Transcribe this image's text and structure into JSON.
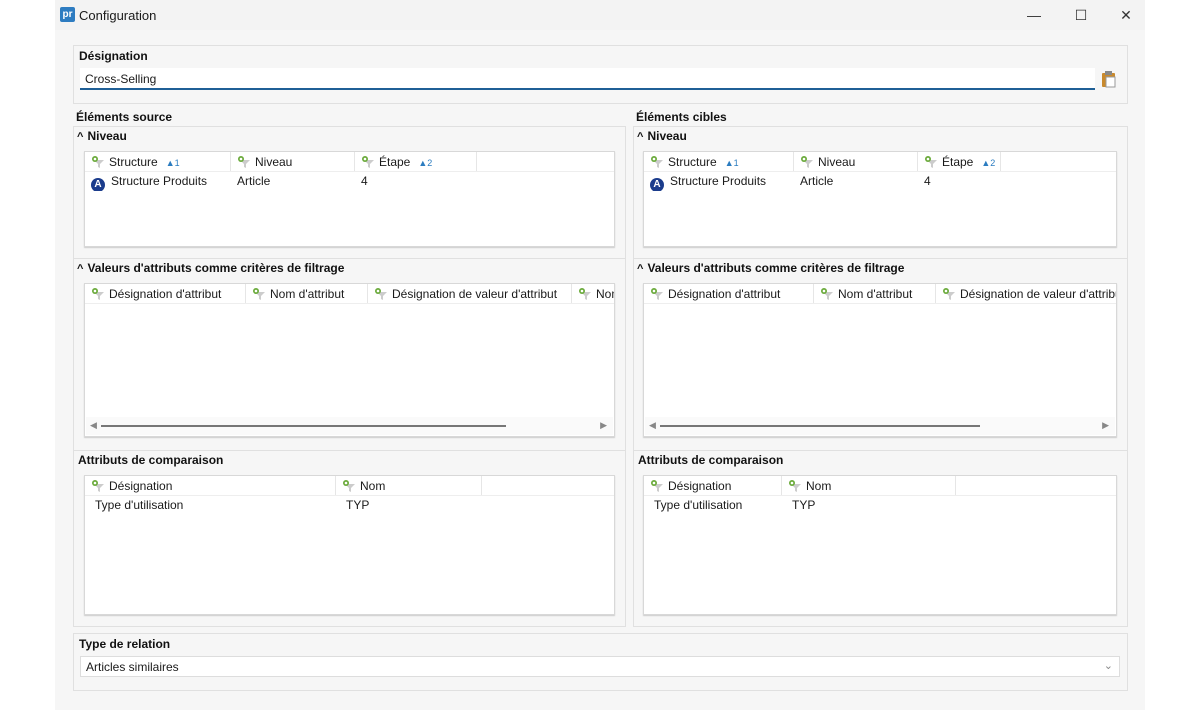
{
  "window": {
    "title": "Configuration",
    "logo": "pr",
    "minimize": "—",
    "maximize": "☐",
    "close": "✕"
  },
  "designation": {
    "label": "Désignation",
    "value": "Cross-Selling",
    "paste_icon": "clipboard-icon"
  },
  "panels": [
    {
      "title": "Éléments source",
      "niveau": {
        "title": "Niveau",
        "columns": [
          {
            "label": "Structure",
            "sort": "1"
          },
          {
            "label": "Niveau",
            "sort": ""
          },
          {
            "label": "Étape",
            "sort": "2"
          }
        ],
        "rows": [
          [
            "Structure Produits",
            "Article",
            "4"
          ]
        ],
        "row_icon": "A"
      },
      "valeurs": {
        "title": "Valeurs d'attributs comme critères de filtrage",
        "columns": [
          "Désignation d'attribut",
          "Nom d'attribut",
          "Désignation de valeur d'attribut",
          "Nom"
        ]
      },
      "comparaison": {
        "title": "Attributs de comparaison",
        "columns": [
          "Désignation",
          "Nom"
        ],
        "rows": [
          [
            "Type d'utilisation",
            "TYP"
          ]
        ]
      }
    },
    {
      "title": "Éléments cibles",
      "niveau": {
        "title": "Niveau",
        "columns": [
          {
            "label": "Structure",
            "sort": "1"
          },
          {
            "label": "Niveau",
            "sort": ""
          },
          {
            "label": "Étape",
            "sort": "2"
          }
        ],
        "rows": [
          [
            "Structure Produits",
            "Article",
            "4"
          ]
        ],
        "row_icon": "A"
      },
      "valeurs": {
        "title": "Valeurs d'attributs comme critères de filtrage",
        "columns": [
          "Désignation d'attribut",
          "Nom d'attribut",
          "Désignation de valeur d'attribut"
        ]
      },
      "comparaison": {
        "title": "Attributs de comparaison",
        "columns": [
          "Désignation",
          "Nom"
        ],
        "rows": [
          [
            "Type d'utilisation",
            "TYP"
          ]
        ]
      }
    }
  ],
  "relation": {
    "label": "Type de relation",
    "value": "Articles similaires"
  }
}
